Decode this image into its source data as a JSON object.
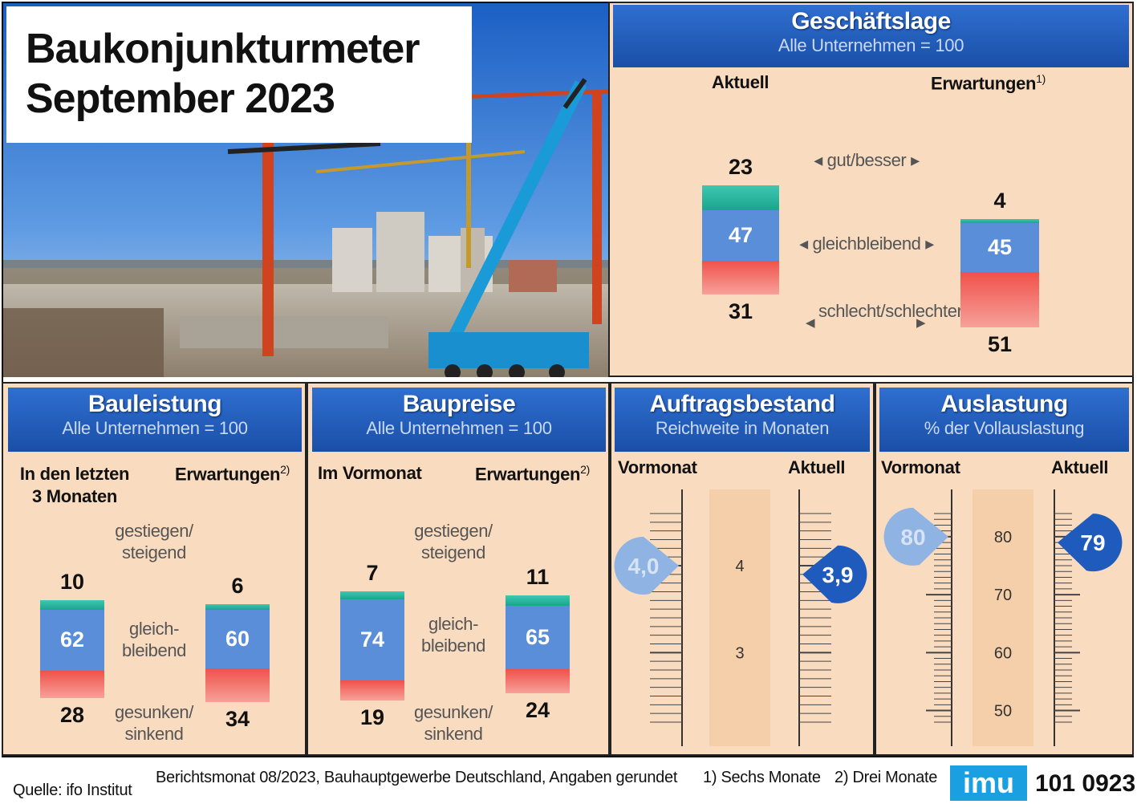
{
  "title": {
    "line1": "Baukonjunkturmeter",
    "line2": "September 2023"
  },
  "colors": {
    "good": "#1fb89f",
    "same": "#5a8ed9",
    "bad": "#f0514a",
    "header": "#1f5bbd",
    "panel": "#f9dcc0"
  },
  "photo_icon": "construction-site-photo",
  "chart_data": [
    {
      "type": "bar",
      "title": "Geschäftslage",
      "subtitle": "Alle Unternehmen = 100",
      "categories": [
        "Aktuell",
        "Erwartungen"
      ],
      "category_notes": [
        "",
        "1)"
      ],
      "stack_labels": [
        "gut/besser",
        "gleichbleibend",
        "schlecht/schlechter"
      ],
      "series": [
        {
          "name": "gut/besser",
          "values": [
            23,
            4
          ]
        },
        {
          "name": "gleichbleibend",
          "values": [
            47,
            45
          ]
        },
        {
          "name": "schlecht/schlechter",
          "values": [
            31,
            51
          ]
        }
      ]
    },
    {
      "type": "bar",
      "title": "Bauleistung",
      "subtitle": "Alle Unternehmen = 100",
      "categories": [
        "In den letzten 3 Monaten",
        "Erwartungen"
      ],
      "category_notes": [
        "",
        "2)"
      ],
      "stack_labels": [
        "gestiegen/ steigend",
        "gleich- bleibend",
        "gesunken/ sinkend"
      ],
      "series": [
        {
          "name": "gestiegen/steigend",
          "values": [
            10,
            6
          ]
        },
        {
          "name": "gleichbleibend",
          "values": [
            62,
            60
          ]
        },
        {
          "name": "gesunken/sinkend",
          "values": [
            28,
            34
          ]
        }
      ]
    },
    {
      "type": "bar",
      "title": "Baupreise",
      "subtitle": "Alle Unternehmen = 100",
      "categories": [
        "Im Vormonat",
        "Erwartungen"
      ],
      "category_notes": [
        "",
        "2)"
      ],
      "stack_labels": [
        "gestiegen/ steigend",
        "gleich- bleibend",
        "gesunken/ sinkend"
      ],
      "series": [
        {
          "name": "gestiegen/steigend",
          "values": [
            7,
            11
          ]
        },
        {
          "name": "gleichbleibend",
          "values": [
            74,
            65
          ]
        },
        {
          "name": "gesunken/sinkend",
          "values": [
            19,
            24
          ]
        }
      ]
    },
    {
      "type": "scatter",
      "title": "Auftragsbestand",
      "subtitle": "Reichweite in Monaten",
      "categories": [
        "Vormonat",
        "Aktuell"
      ],
      "values": [
        4.0,
        3.9
      ],
      "value_labels": [
        "4,0",
        "3,9"
      ],
      "ticks": [
        4,
        3
      ],
      "ylim": [
        2.2,
        4.6
      ]
    },
    {
      "type": "scatter",
      "title": "Auslastung",
      "subtitle": "% der Vollauslastung",
      "categories": [
        "Vormonat",
        "Aktuell"
      ],
      "values": [
        80,
        79
      ],
      "value_labels": [
        "80",
        "79"
      ],
      "ticks": [
        80,
        70,
        60,
        50
      ],
      "ylim": [
        48,
        84
      ]
    }
  ],
  "footer": {
    "source": "Quelle: ifo Institut",
    "info": "Berichtsmonat 08/2023, Bauhauptgewerbe Deutschland, Angaben gerundet",
    "note1": "1) Sechs Monate",
    "note2": "2) Drei Monate",
    "logo": "imu",
    "code": "101 0923"
  }
}
